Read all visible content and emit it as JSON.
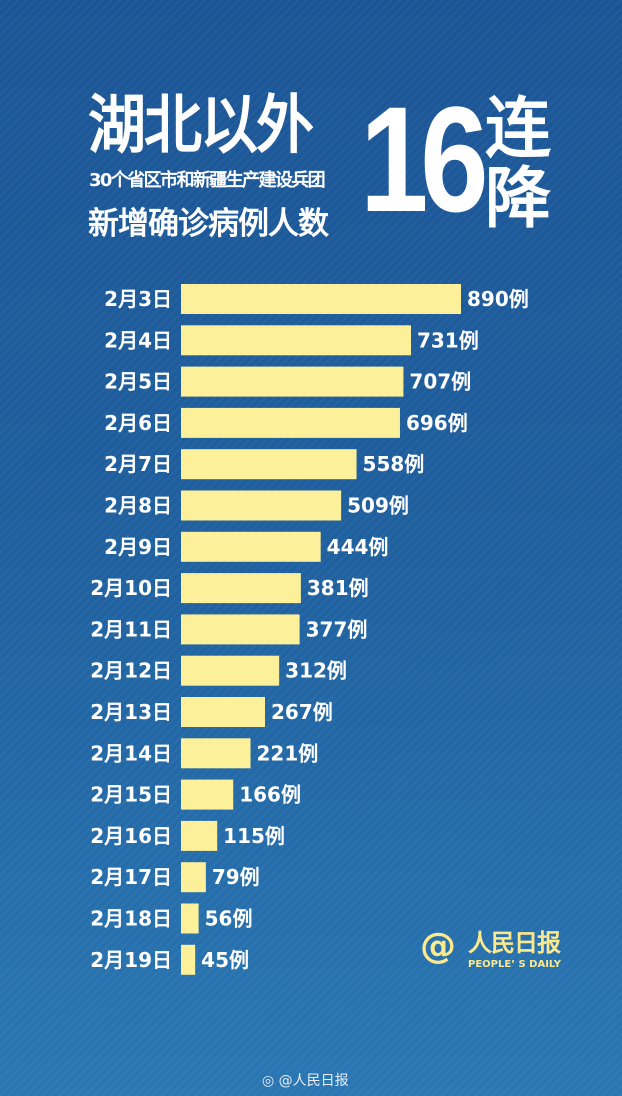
{
  "header": {
    "line1": "湖北以外",
    "line2": "30个省区市和新疆生产建设兵团",
    "line3": "新增确诊病例人数",
    "big_number": "16",
    "side_text": "连降"
  },
  "chart_data": {
    "type": "bar",
    "orientation": "horizontal",
    "categories": [
      "2月3日",
      "2月4日",
      "2月5日",
      "2月6日",
      "2月7日",
      "2月8日",
      "2月9日",
      "2月10日",
      "2月11日",
      "2月12日",
      "2月13日",
      "2月14日",
      "2月15日",
      "2月16日",
      "2月17日",
      "2月18日",
      "2月19日"
    ],
    "values": [
      890,
      731,
      707,
      696,
      558,
      509,
      444,
      381,
      377,
      312,
      267,
      221,
      166,
      115,
      79,
      56,
      45
    ],
    "value_suffix": "例",
    "bar_color": "#fcf09a",
    "background_color": "#1f5c9c",
    "grid": false
  },
  "logo": {
    "at": "@",
    "name": "人民日报",
    "english": "PEOPLE’ S DAILY"
  },
  "watermark": {
    "icon": "weibo-icon",
    "text": "@人民日报"
  }
}
